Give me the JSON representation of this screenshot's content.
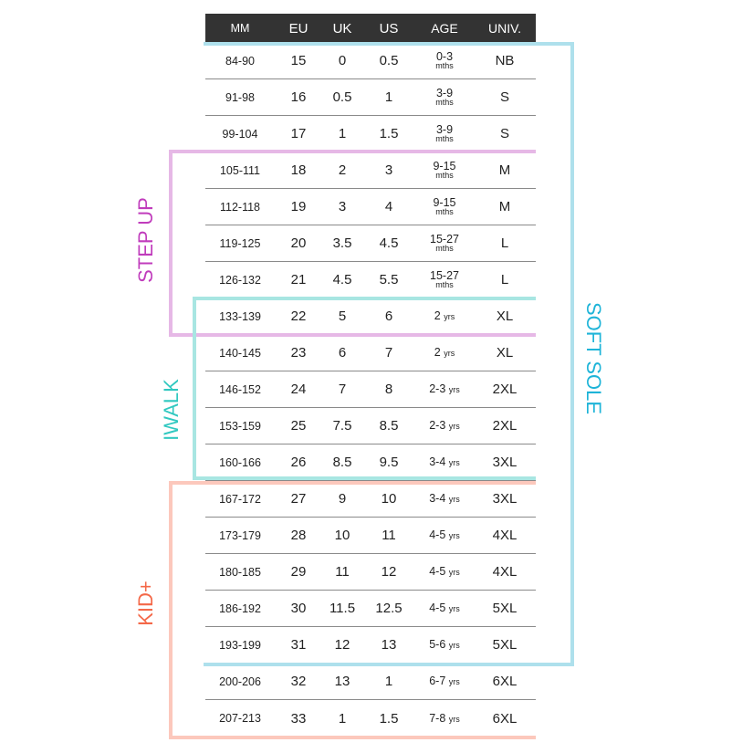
{
  "header": [
    "MM",
    "EU",
    "UK",
    "US",
    "AGE",
    "UNIV."
  ],
  "rows": [
    {
      "mm": "84-90",
      "eu": "15",
      "uk": "0",
      "us": "0.5",
      "age": "0-3",
      "unit": "mths",
      "univ": "NB"
    },
    {
      "mm": "91-98",
      "eu": "16",
      "uk": "0.5",
      "us": "1",
      "age": "3-9",
      "unit": "mths",
      "univ": "S"
    },
    {
      "mm": "99-104",
      "eu": "17",
      "uk": "1",
      "us": "1.5",
      "age": "3-9",
      "unit": "mths",
      "univ": "S"
    },
    {
      "mm": "105-111",
      "eu": "18",
      "uk": "2",
      "us": "3",
      "age": "9-15",
      "unit": "mths",
      "univ": "M"
    },
    {
      "mm": "112-118",
      "eu": "19",
      "uk": "3",
      "us": "4",
      "age": "9-15",
      "unit": "mths",
      "univ": "M"
    },
    {
      "mm": "119-125",
      "eu": "20",
      "uk": "3.5",
      "us": "4.5",
      "age": "15-27",
      "unit": "mths",
      "univ": "L"
    },
    {
      "mm": "126-132",
      "eu": "21",
      "uk": "4.5",
      "us": "5.5",
      "age": "15-27",
      "unit": "mths",
      "univ": "L"
    },
    {
      "mm": "133-139",
      "eu": "22",
      "uk": "5",
      "us": "6",
      "age": "2",
      "unit": "yrs",
      "univ": "XL"
    },
    {
      "mm": "140-145",
      "eu": "23",
      "uk": "6",
      "us": "7",
      "age": "2",
      "unit": "yrs",
      "univ": "XL"
    },
    {
      "mm": "146-152",
      "eu": "24",
      "uk": "7",
      "us": "8",
      "age": "2-3",
      "unit": "yrs",
      "univ": "2XL"
    },
    {
      "mm": "153-159",
      "eu": "25",
      "uk": "7.5",
      "us": "8.5",
      "age": "2-3",
      "unit": "yrs",
      "univ": "2XL"
    },
    {
      "mm": "160-166",
      "eu": "26",
      "uk": "8.5",
      "us": "9.5",
      "age": "3-4",
      "unit": "yrs",
      "univ": "3XL"
    },
    {
      "mm": "167-172",
      "eu": "27",
      "uk": "9",
      "us": "10",
      "age": "3-4",
      "unit": "yrs",
      "univ": "3XL"
    },
    {
      "mm": "173-179",
      "eu": "28",
      "uk": "10",
      "us": "11",
      "age": "4-5",
      "unit": "yrs",
      "univ": "4XL"
    },
    {
      "mm": "180-185",
      "eu": "29",
      "uk": "11",
      "us": "12",
      "age": "4-5",
      "unit": "yrs",
      "univ": "4XL"
    },
    {
      "mm": "186-192",
      "eu": "30",
      "uk": "11.5",
      "us": "12.5",
      "age": "4-5",
      "unit": "yrs",
      "univ": "5XL"
    },
    {
      "mm": "193-199",
      "eu": "31",
      "uk": "12",
      "us": "13",
      "age": "5-6",
      "unit": "yrs",
      "univ": "5XL"
    },
    {
      "mm": "200-206",
      "eu": "32",
      "uk": "13",
      "us": "1",
      "age": "6-7",
      "unit": "yrs",
      "univ": "6XL"
    },
    {
      "mm": "207-213",
      "eu": "33",
      "uk": "1",
      "us": "1.5",
      "age": "7-8",
      "unit": "yrs",
      "univ": "6XL"
    }
  ],
  "groups": {
    "soft_sole": {
      "label": "SOFT SOLE",
      "color": "#1eb4d8",
      "line": "#aee0ec"
    },
    "step_up": {
      "label": "STEP UP",
      "color": "#c03cbc",
      "line": "#e6b8e6"
    },
    "iwalk": {
      "label": "IWALK",
      "color": "#30c8c0",
      "line": "#a8e6e2"
    },
    "kid_plus": {
      "label": "KID+",
      "color": "#f46848",
      "line": "#fcc8bc"
    }
  }
}
